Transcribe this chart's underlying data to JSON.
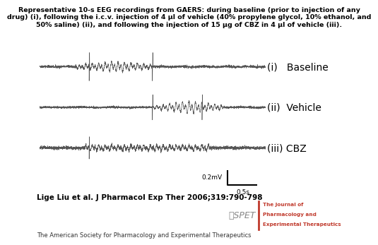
{
  "title_line1": "Representative 10-s EEG recordings from GAERS: during baseline (prior to injection of any",
  "title_line2": "drug) (i), following the i.c.v. injection of 4 μl of vehicle (40% propylene glycol, 10% ethanol, and",
  "title_line3": "50% saline) (ii), and following the injection of 15 μg of CBZ in 4 μl of vehicle (iii).",
  "labels": [
    "(i)   Baseline",
    "(ii)  Vehicle",
    "(iii) CBZ"
  ],
  "citation": "Lige Liu et al. J Pharmacol Exp Ther 2006;319:790-798",
  "society": "The American Society for Pharmacology and Experimental Therapeutics",
  "scale_mv": "0.2mV",
  "scale_s": "0.5s",
  "bg_color": "#ffffff",
  "eeg_color": "#555555",
  "title_fontsize": 6.8,
  "label_fontsize": 10,
  "citation_fontsize": 7.5,
  "society_fontsize": 6.0,
  "aspet_color": "#c0392b"
}
